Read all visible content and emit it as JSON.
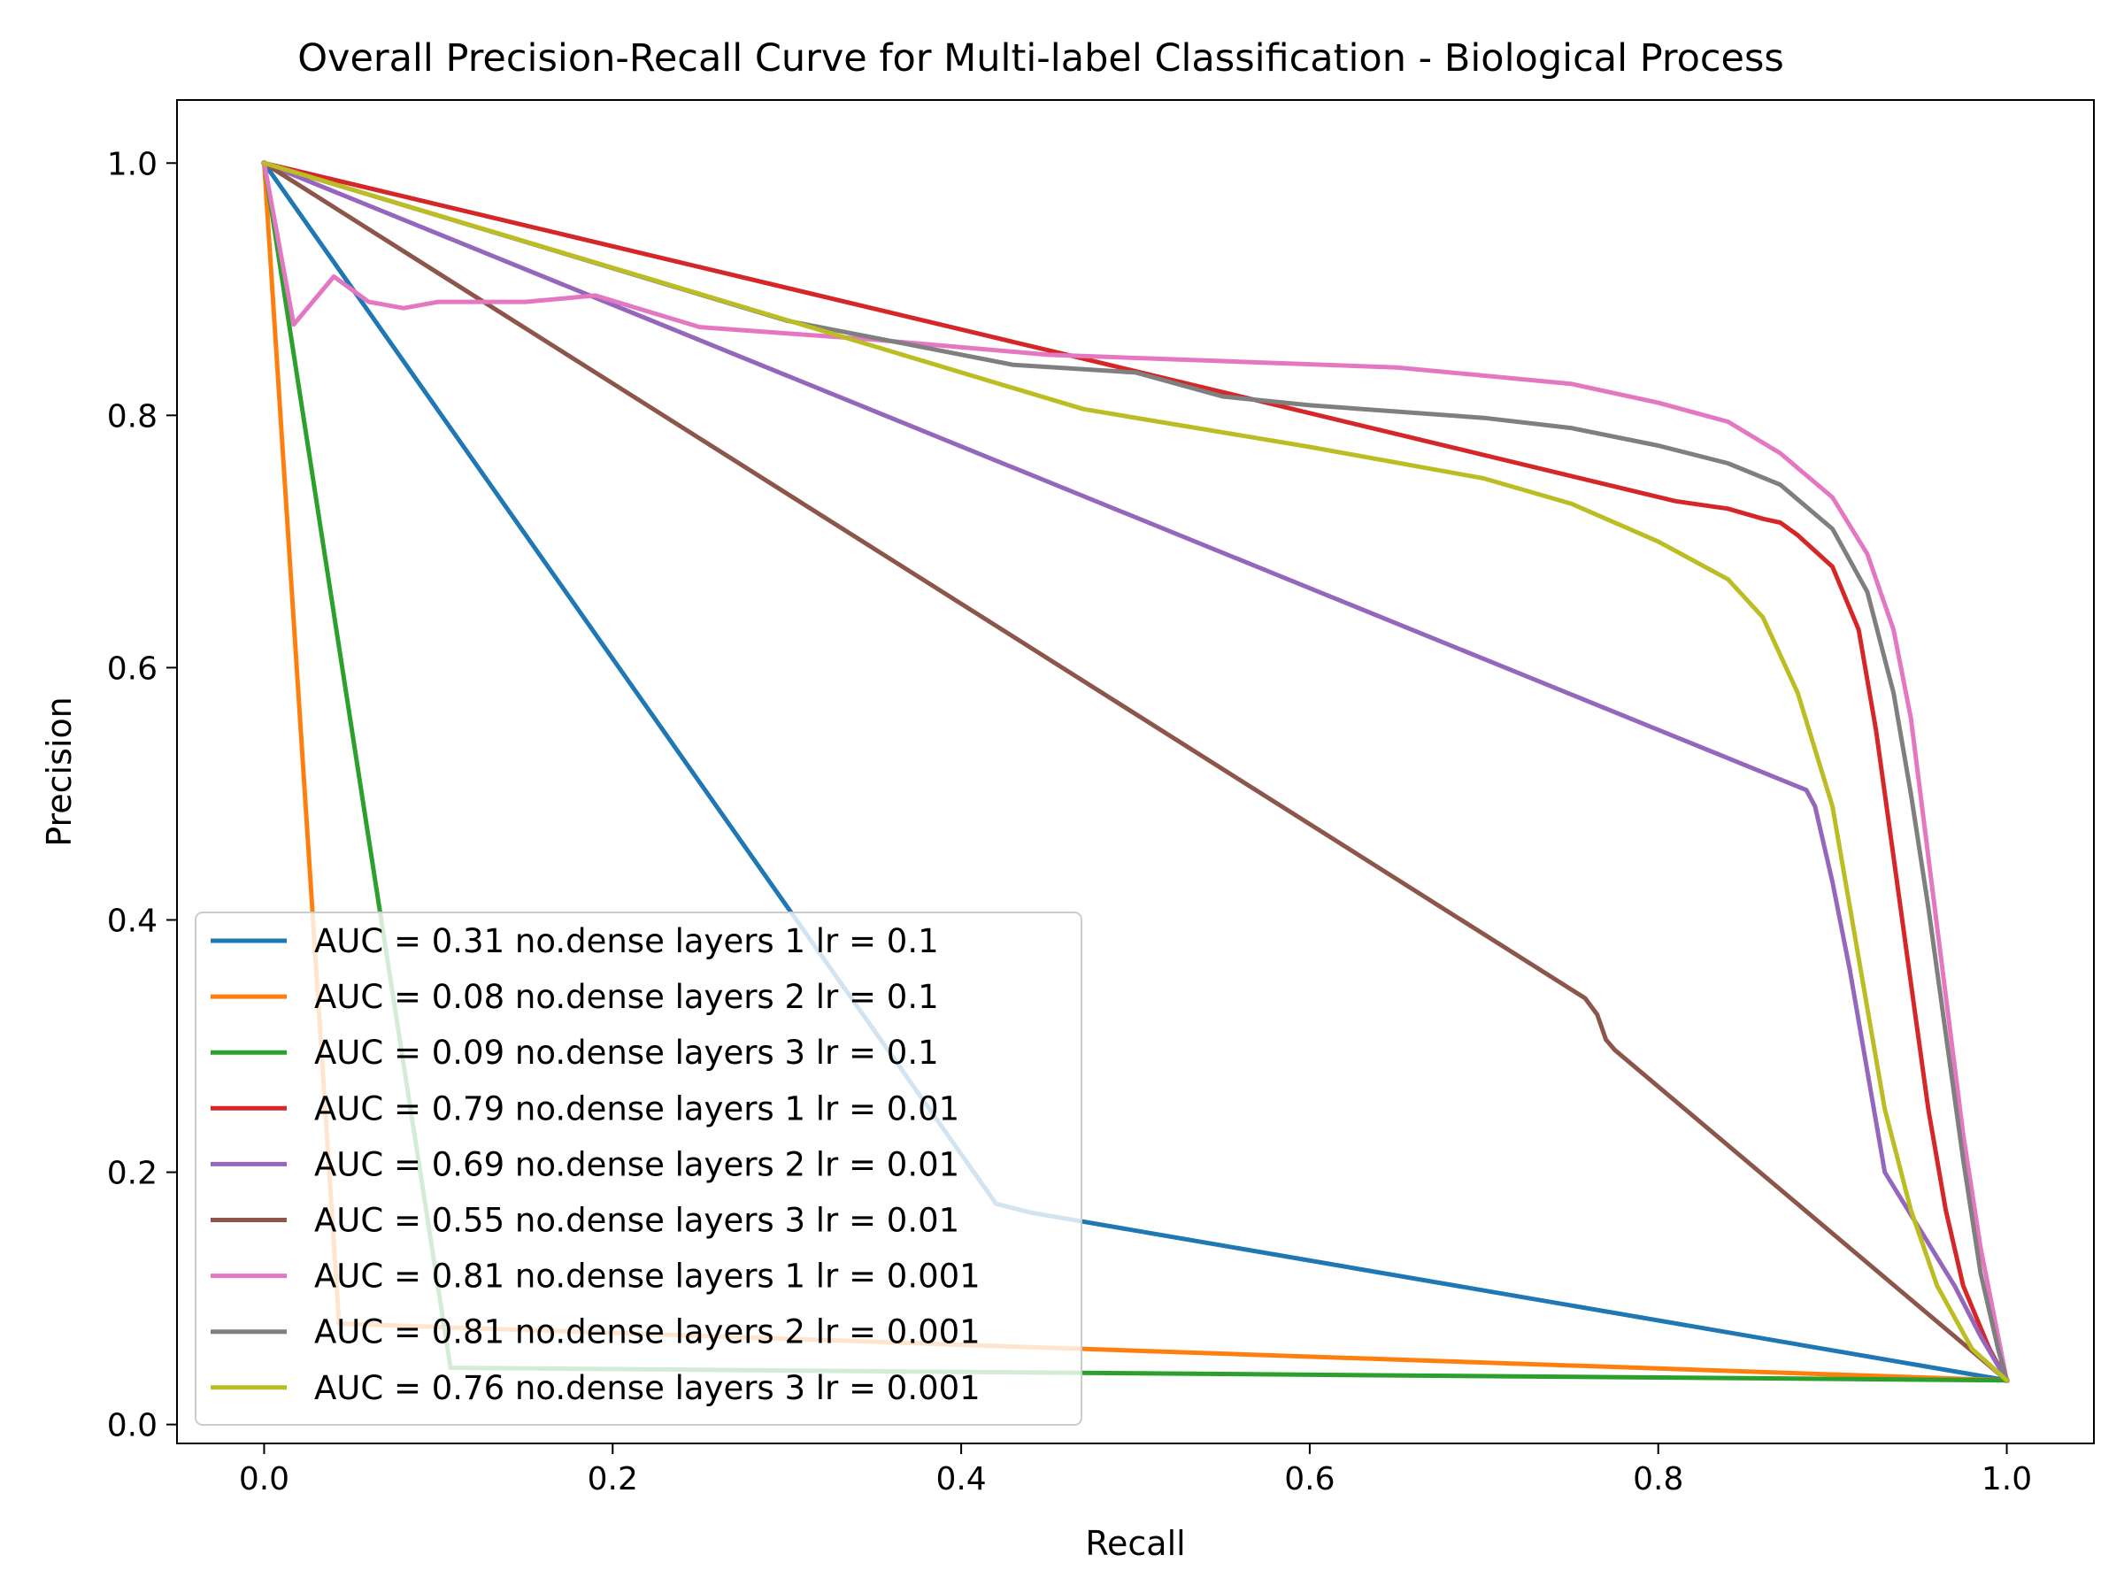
{
  "chart_data": {
    "type": "line",
    "title": "Overall Precision-Recall Curve for Multi-label Classification - Biological Process",
    "xlabel": "Recall",
    "ylabel": "Precision",
    "xlim": [
      -0.05,
      1.05
    ],
    "ylim": [
      -0.015,
      1.05
    ],
    "xticks": [
      0.0,
      0.2,
      0.4,
      0.6,
      0.8,
      1.0
    ],
    "yticks": [
      0.0,
      0.2,
      0.4,
      0.6,
      0.8,
      1.0
    ],
    "xtick_labels": [
      "0.0",
      "0.2",
      "0.4",
      "0.6",
      "0.8",
      "1.0"
    ],
    "ytick_labels": [
      "0.0",
      "0.2",
      "0.4",
      "0.6",
      "0.8",
      "1.0"
    ],
    "grid": false,
    "legend_position": "lower-left",
    "series": [
      {
        "name": "AUC = 0.31 no.dense layers 1 lr = 0.1",
        "color": "#1f77b4",
        "points": [
          [
            0.0,
            1.0
          ],
          [
            0.42,
            0.175
          ],
          [
            0.44,
            0.168
          ],
          [
            1.0,
            0.035
          ]
        ]
      },
      {
        "name": "AUC = 0.08 no.dense layers 2 lr = 0.1",
        "color": "#ff7f0e",
        "points": [
          [
            0.0,
            1.0
          ],
          [
            0.043,
            0.08
          ],
          [
            1.0,
            0.035
          ]
        ]
      },
      {
        "name": "AUC = 0.09 no.dense layers 3 lr = 0.1",
        "color": "#2ca02c",
        "points": [
          [
            0.0,
            1.0
          ],
          [
            0.107,
            0.045
          ],
          [
            1.0,
            0.035
          ]
        ]
      },
      {
        "name": "AUC = 0.79 no.dense layers 1 lr = 0.01",
        "color": "#d62728",
        "points": [
          [
            0.0,
            1.0
          ],
          [
            0.47,
            0.845
          ],
          [
            0.81,
            0.732
          ],
          [
            0.84,
            0.726
          ],
          [
            0.86,
            0.718
          ],
          [
            0.87,
            0.715
          ],
          [
            0.88,
            0.705
          ],
          [
            0.9,
            0.68
          ],
          [
            0.915,
            0.63
          ],
          [
            0.925,
            0.55
          ],
          [
            0.935,
            0.45
          ],
          [
            0.945,
            0.35
          ],
          [
            0.955,
            0.25
          ],
          [
            0.965,
            0.17
          ],
          [
            0.975,
            0.11
          ],
          [
            0.99,
            0.06
          ],
          [
            1.0,
            0.035
          ]
        ]
      },
      {
        "name": "AUC = 0.69 no.dense layers 2 lr = 0.01",
        "color": "#9467bd",
        "points": [
          [
            0.0,
            1.0
          ],
          [
            0.885,
            0.503
          ],
          [
            0.89,
            0.49
          ],
          [
            0.9,
            0.43
          ],
          [
            0.91,
            0.36
          ],
          [
            0.92,
            0.28
          ],
          [
            0.93,
            0.2
          ],
          [
            0.95,
            0.155
          ],
          [
            0.97,
            0.11
          ],
          [
            0.985,
            0.07
          ],
          [
            1.0,
            0.035
          ]
        ]
      },
      {
        "name": "AUC = 0.55 no.dense layers 3 lr = 0.01",
        "color": "#8c564b",
        "points": [
          [
            0.0,
            1.0
          ],
          [
            0.758,
            0.338
          ],
          [
            0.765,
            0.325
          ],
          [
            0.77,
            0.305
          ],
          [
            0.775,
            0.297
          ],
          [
            1.0,
            0.035
          ]
        ]
      },
      {
        "name": "AUC = 0.81 no.dense layers 1 lr = 0.001",
        "color": "#e377c2",
        "points": [
          [
            0.0,
            1.0
          ],
          [
            0.017,
            0.872
          ],
          [
            0.04,
            0.91
          ],
          [
            0.06,
            0.89
          ],
          [
            0.08,
            0.885
          ],
          [
            0.1,
            0.89
          ],
          [
            0.12,
            0.89
          ],
          [
            0.15,
            0.89
          ],
          [
            0.19,
            0.895
          ],
          [
            0.25,
            0.87
          ],
          [
            0.3,
            0.865
          ],
          [
            0.35,
            0.86
          ],
          [
            0.45,
            0.848
          ],
          [
            0.55,
            0.843
          ],
          [
            0.65,
            0.838
          ],
          [
            0.75,
            0.825
          ],
          [
            0.8,
            0.81
          ],
          [
            0.84,
            0.795
          ],
          [
            0.87,
            0.77
          ],
          [
            0.9,
            0.735
          ],
          [
            0.92,
            0.69
          ],
          [
            0.935,
            0.63
          ],
          [
            0.945,
            0.56
          ],
          [
            0.955,
            0.45
          ],
          [
            0.965,
            0.34
          ],
          [
            0.975,
            0.23
          ],
          [
            0.985,
            0.14
          ],
          [
            0.995,
            0.07
          ],
          [
            1.0,
            0.035
          ]
        ]
      },
      {
        "name": "AUC = 0.81 no.dense layers 2 lr = 0.001",
        "color": "#7f7f7f",
        "points": [
          [
            0.0,
            1.0
          ],
          [
            0.3,
            0.875
          ],
          [
            0.43,
            0.84
          ],
          [
            0.5,
            0.834
          ],
          [
            0.55,
            0.815
          ],
          [
            0.6,
            0.808
          ],
          [
            0.7,
            0.798
          ],
          [
            0.75,
            0.79
          ],
          [
            0.8,
            0.776
          ],
          [
            0.84,
            0.762
          ],
          [
            0.87,
            0.745
          ],
          [
            0.9,
            0.71
          ],
          [
            0.92,
            0.66
          ],
          [
            0.935,
            0.58
          ],
          [
            0.945,
            0.5
          ],
          [
            0.955,
            0.41
          ],
          [
            0.965,
            0.31
          ],
          [
            0.975,
            0.21
          ],
          [
            0.985,
            0.12
          ],
          [
            0.995,
            0.06
          ],
          [
            1.0,
            0.035
          ]
        ]
      },
      {
        "name": "AUC = 0.76 no.dense layers 3 lr = 0.001",
        "color": "#bcbd22",
        "points": [
          [
            0.0,
            1.0
          ],
          [
            0.47,
            0.805
          ],
          [
            0.6,
            0.775
          ],
          [
            0.7,
            0.75
          ],
          [
            0.75,
            0.73
          ],
          [
            0.8,
            0.7
          ],
          [
            0.84,
            0.67
          ],
          [
            0.86,
            0.64
          ],
          [
            0.88,
            0.58
          ],
          [
            0.9,
            0.49
          ],
          [
            0.91,
            0.41
          ],
          [
            0.92,
            0.33
          ],
          [
            0.93,
            0.25
          ],
          [
            0.945,
            0.17
          ],
          [
            0.96,
            0.11
          ],
          [
            0.98,
            0.06
          ],
          [
            1.0,
            0.035
          ]
        ]
      }
    ]
  }
}
